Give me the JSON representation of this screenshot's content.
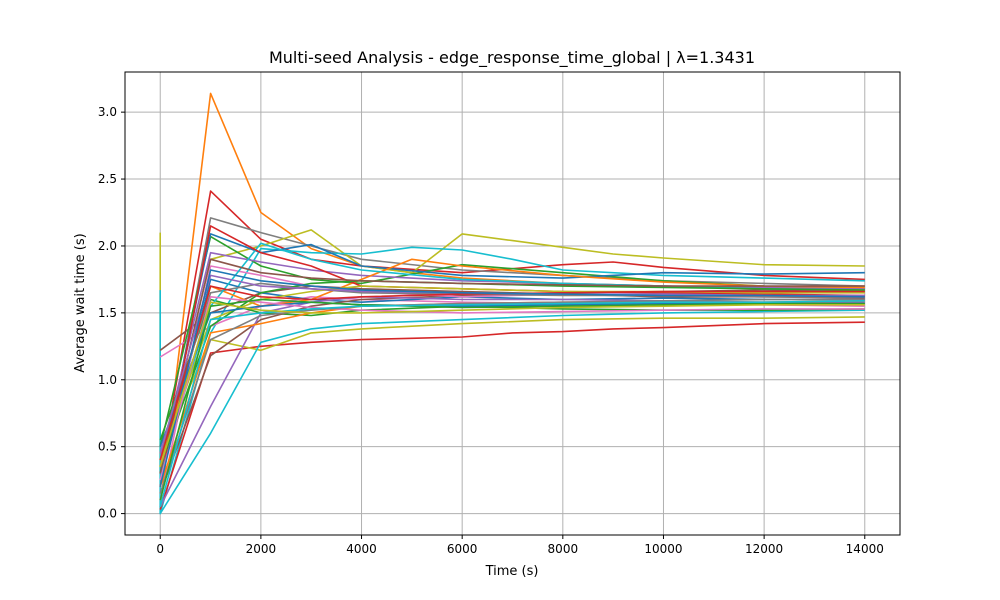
{
  "chart_data": {
    "type": "line",
    "title": "Multi-seed Analysis - edge_response_time_global | λ=1.3431",
    "xlabel": "Time (s)",
    "ylabel": "Average wait time (s)",
    "xlim": [
      -700,
      14700
    ],
    "ylim": [
      -0.16,
      3.3
    ],
    "x_ticks": [
      0,
      2000,
      4000,
      6000,
      8000,
      10000,
      12000,
      14000
    ],
    "x_tick_labels": [
      "0",
      "2000",
      "4000",
      "6000",
      "8000",
      "10000",
      "12000",
      "14000"
    ],
    "y_ticks": [
      0.0,
      0.5,
      1.0,
      1.5,
      2.0,
      2.5,
      3.0
    ],
    "y_tick_labels": [
      "0.0",
      "0.5",
      "1.0",
      "1.5",
      "2.0",
      "2.5",
      "3.0"
    ],
    "grid": true,
    "legend": false,
    "series": [
      {
        "color": "#ff7f0e",
        "x": [
          0,
          1000,
          2000,
          3000,
          4000,
          5000,
          6000,
          8000,
          10000,
          12000,
          14000
        ],
        "y": [
          0.05,
          3.14,
          2.25,
          1.98,
          1.85,
          1.8,
          1.76,
          1.72,
          1.7,
          1.68,
          1.67
        ]
      },
      {
        "color": "#d62728",
        "x": [
          0,
          1000,
          2000,
          3000,
          4000,
          6000,
          8000,
          9000,
          10000,
          12000,
          14000
        ],
        "y": [
          0.3,
          2.41,
          2.05,
          1.9,
          1.85,
          1.8,
          1.86,
          1.88,
          1.84,
          1.78,
          1.75
        ]
      },
      {
        "color": "#7f7f7f",
        "x": [
          0,
          1000,
          2000,
          3000,
          4000,
          6000,
          8000,
          10000,
          12000,
          14000
        ],
        "y": [
          0.2,
          2.21,
          2.1,
          2.0,
          1.9,
          1.82,
          1.78,
          1.74,
          1.72,
          1.7
        ]
      },
      {
        "color": "#bcbd22",
        "x": [
          0,
          0,
          1000,
          2000,
          3000,
          4000,
          5000,
          6000,
          7000,
          8000,
          9000,
          10000,
          12000,
          14000
        ],
        "y": [
          2.1,
          0.3,
          1.9,
          2.0,
          2.12,
          1.85,
          1.8,
          2.09,
          2.04,
          1.99,
          1.94,
          1.91,
          1.86,
          1.85
        ]
      },
      {
        "color": "#17becf",
        "x": [
          0,
          0,
          1000,
          2000,
          3000,
          4000,
          5000,
          6000,
          7000,
          8000,
          10000,
          12000,
          14000
        ],
        "y": [
          1.67,
          0.0,
          1.35,
          1.98,
          1.95,
          1.94,
          1.99,
          1.97,
          1.9,
          1.82,
          1.78,
          1.76,
          1.74
        ]
      },
      {
        "color": "#8c564b",
        "x": [
          0,
          1000,
          2000,
          3000,
          4000,
          6000,
          8000,
          10000,
          12000,
          14000
        ],
        "y": [
          1.22,
          1.5,
          1.65,
          1.7,
          1.68,
          1.66,
          1.64,
          1.62,
          1.62,
          1.61
        ]
      },
      {
        "color": "#e377c2",
        "x": [
          0,
          1000,
          2000,
          3000,
          4000,
          6000,
          8000,
          10000,
          12000,
          14000
        ],
        "y": [
          1.17,
          1.4,
          1.55,
          1.62,
          1.6,
          1.58,
          1.57,
          1.57,
          1.56,
          1.55
        ]
      },
      {
        "color": "#d62728",
        "x": [
          0,
          1000,
          2000,
          3000,
          4000,
          5000,
          6000,
          7000,
          8000,
          9000,
          10000,
          12000,
          14000
        ],
        "y": [
          0.03,
          1.2,
          1.25,
          1.28,
          1.3,
          1.31,
          1.32,
          1.35,
          1.36,
          1.38,
          1.39,
          1.42,
          1.43
        ]
      },
      {
        "color": "#bcbd22",
        "x": [
          0,
          1000,
          2000,
          3000,
          4000,
          5000,
          6000,
          8000,
          10000,
          12000,
          14000
        ],
        "y": [
          0.45,
          1.3,
          1.22,
          1.35,
          1.38,
          1.4,
          1.42,
          1.45,
          1.46,
          1.46,
          1.47
        ]
      },
      {
        "color": "#17becf",
        "x": [
          0,
          1000,
          2000,
          3000,
          4000,
          6000,
          8000,
          10000,
          12000,
          14000
        ],
        "y": [
          0.0,
          0.6,
          1.28,
          1.38,
          1.42,
          1.45,
          1.48,
          1.5,
          1.51,
          1.52
        ]
      },
      {
        "color": "#2ca02c",
        "x": [
          0,
          1000,
          2000,
          3000,
          4000,
          6000,
          8000,
          10000,
          12000,
          14000
        ],
        "y": [
          0.5,
          2.07,
          1.85,
          1.75,
          1.72,
          1.86,
          1.8,
          1.74,
          1.7,
          1.68
        ]
      },
      {
        "color": "#1f77b4",
        "x": [
          0,
          1000,
          2000,
          3000,
          4000,
          6000,
          8000,
          10000,
          12000,
          14000
        ],
        "y": [
          0.3,
          2.09,
          1.95,
          2.01,
          1.85,
          1.78,
          1.76,
          1.8,
          1.79,
          1.8
        ]
      },
      {
        "color": "#9467bd",
        "x": [
          0,
          1000,
          2000,
          3000,
          4000,
          6000,
          8000,
          10000,
          12000,
          14000
        ],
        "y": [
          0.4,
          1.95,
          1.88,
          1.82,
          1.78,
          1.74,
          1.72,
          1.7,
          1.69,
          1.68
        ]
      },
      {
        "color": "#ff7f0e",
        "x": [
          0,
          1000,
          2000,
          3000,
          4000,
          5000,
          6000,
          8000,
          10000,
          12000,
          14000
        ],
        "y": [
          0.35,
          1.7,
          1.55,
          1.6,
          1.75,
          1.9,
          1.85,
          1.78,
          1.73,
          1.7,
          1.69
        ]
      },
      {
        "color": "#2ca02c",
        "x": [
          0,
          1000,
          2000,
          3000,
          4000,
          6000,
          8000,
          10000,
          12000,
          14000
        ],
        "y": [
          0.55,
          1.6,
          1.5,
          1.48,
          1.52,
          1.55,
          1.53,
          1.52,
          1.52,
          1.53
        ]
      },
      {
        "color": "#1f77b4",
        "x": [
          0,
          1000,
          2000,
          3000,
          4000,
          6000,
          8000,
          10000,
          12000,
          14000
        ],
        "y": [
          0.25,
          1.75,
          1.65,
          1.6,
          1.58,
          1.62,
          1.6,
          1.61,
          1.6,
          1.6
        ]
      },
      {
        "color": "#8c564b",
        "x": [
          0,
          1000,
          2000,
          3000,
          4000,
          6000,
          8000,
          10000,
          12000,
          14000
        ],
        "y": [
          0.15,
          1.18,
          1.45,
          1.55,
          1.6,
          1.63,
          1.65,
          1.66,
          1.67,
          1.66
        ]
      },
      {
        "color": "#e377c2",
        "x": [
          0,
          1000,
          2000,
          3000,
          4000,
          6000,
          8000,
          10000,
          12000,
          14000
        ],
        "y": [
          0.1,
          1.85,
          1.78,
          1.7,
          1.66,
          1.62,
          1.64,
          1.63,
          1.62,
          1.62
        ]
      },
      {
        "color": "#7f7f7f",
        "x": [
          0,
          1000,
          2000,
          3000,
          4000,
          6000,
          8000,
          10000,
          12000,
          14000
        ],
        "y": [
          0.45,
          1.65,
          1.72,
          1.68,
          1.65,
          1.64,
          1.63,
          1.63,
          1.62,
          1.62
        ]
      },
      {
        "color": "#9467bd",
        "x": [
          0,
          1000,
          2000,
          3000,
          4000,
          6000,
          8000,
          10000,
          12000,
          14000
        ],
        "y": [
          0.05,
          0.8,
          1.5,
          1.58,
          1.62,
          1.6,
          1.6,
          1.59,
          1.58,
          1.58
        ]
      },
      {
        "color": "#17becf",
        "x": [
          0,
          1000,
          2000,
          3000,
          4000,
          6000,
          8000,
          10000,
          12000,
          14000
        ],
        "y": [
          0.3,
          1.55,
          2.02,
          1.9,
          1.82,
          1.75,
          1.72,
          1.7,
          1.68,
          1.67
        ]
      },
      {
        "color": "#d62728",
        "x": [
          0,
          1000,
          2000,
          3000,
          4000,
          6000,
          8000,
          10000,
          12000,
          14000
        ],
        "y": [
          0.2,
          2.15,
          1.95,
          1.85,
          1.7,
          1.68,
          1.66,
          1.65,
          1.64,
          1.63
        ]
      },
      {
        "color": "#bcbd22",
        "x": [
          0,
          1000,
          2000,
          3000,
          4000,
          6000,
          8000,
          10000,
          12000,
          14000
        ],
        "y": [
          0.4,
          1.45,
          1.6,
          1.66,
          1.7,
          1.68,
          1.66,
          1.66,
          1.65,
          1.65
        ]
      },
      {
        "color": "#2ca02c",
        "x": [
          0,
          1000,
          2000,
          3000,
          4000,
          6000,
          8000,
          10000,
          12000,
          14000
        ],
        "y": [
          0.35,
          1.4,
          1.65,
          1.72,
          1.74,
          1.72,
          1.7,
          1.69,
          1.68,
          1.67
        ]
      },
      {
        "color": "#ff7f0e",
        "x": [
          0,
          1000,
          2000,
          3000,
          4000,
          6000,
          8000,
          10000,
          12000,
          14000
        ],
        "y": [
          0.2,
          1.35,
          1.42,
          1.5,
          1.55,
          1.57,
          1.58,
          1.58,
          1.58,
          1.59
        ]
      },
      {
        "color": "#1f77b4",
        "x": [
          0,
          1000,
          2000,
          3000,
          4000,
          6000,
          8000,
          10000,
          12000,
          14000
        ],
        "y": [
          0.5,
          1.5,
          1.55,
          1.58,
          1.56,
          1.55,
          1.56,
          1.57,
          1.57,
          1.57
        ]
      },
      {
        "color": "#8c564b",
        "x": [
          0,
          1000,
          2000,
          3000,
          4000,
          6000,
          8000,
          10000,
          12000,
          14000
        ],
        "y": [
          0.3,
          1.9,
          1.8,
          1.76,
          1.74,
          1.72,
          1.71,
          1.7,
          1.7,
          1.7
        ]
      },
      {
        "color": "#e377c2",
        "x": [
          0,
          1000,
          2000,
          3000,
          4000,
          6000,
          8000,
          10000,
          12000,
          14000
        ],
        "y": [
          0.25,
          1.62,
          1.58,
          1.54,
          1.52,
          1.5,
          1.51,
          1.52,
          1.53,
          1.53
        ]
      },
      {
        "color": "#9467bd",
        "x": [
          0,
          1000,
          2000,
          3000,
          4000,
          6000,
          8000,
          10000,
          12000,
          14000
        ],
        "y": [
          0.45,
          1.78,
          1.7,
          1.68,
          1.66,
          1.65,
          1.64,
          1.64,
          1.63,
          1.63
        ]
      },
      {
        "color": "#7f7f7f",
        "x": [
          0,
          1000,
          2000,
          3000,
          4000,
          6000,
          8000,
          10000,
          12000,
          14000
        ],
        "y": [
          0.15,
          1.3,
          1.48,
          1.52,
          1.55,
          1.57,
          1.58,
          1.59,
          1.6,
          1.6
        ]
      },
      {
        "color": "#2ca02c",
        "x": [
          0,
          1000,
          2000,
          3000,
          4000,
          6000,
          8000,
          10000,
          12000,
          14000
        ],
        "y": [
          0.1,
          1.55,
          1.6,
          1.58,
          1.56,
          1.54,
          1.55,
          1.56,
          1.57,
          1.57
        ]
      },
      {
        "color": "#17becf",
        "x": [
          0,
          1000,
          2000,
          3000,
          4000,
          6000,
          8000,
          10000,
          12000,
          14000
        ],
        "y": [
          0.05,
          1.45,
          1.5,
          1.53,
          1.55,
          1.56,
          1.57,
          1.58,
          1.58,
          1.59
        ]
      },
      {
        "color": "#d62728",
        "x": [
          0,
          1000,
          2000,
          3000,
          4000,
          6000,
          8000,
          10000,
          12000,
          14000
        ],
        "y": [
          0.4,
          1.7,
          1.62,
          1.6,
          1.62,
          1.64,
          1.65,
          1.66,
          1.66,
          1.66
        ]
      },
      {
        "color": "#1f77b4",
        "x": [
          0,
          1000,
          2000,
          3000,
          4000,
          6000,
          8000,
          10000,
          12000,
          14000
        ],
        "y": [
          0.2,
          1.82,
          1.74,
          1.7,
          1.67,
          1.65,
          1.64,
          1.63,
          1.63,
          1.62
        ]
      },
      {
        "color": "#bcbd22",
        "x": [
          0,
          1000,
          2000,
          3000,
          4000,
          6000,
          8000,
          10000,
          12000,
          14000
        ],
        "y": [
          0.35,
          1.58,
          1.52,
          1.5,
          1.5,
          1.52,
          1.54,
          1.55,
          1.56,
          1.56
        ]
      }
    ]
  }
}
